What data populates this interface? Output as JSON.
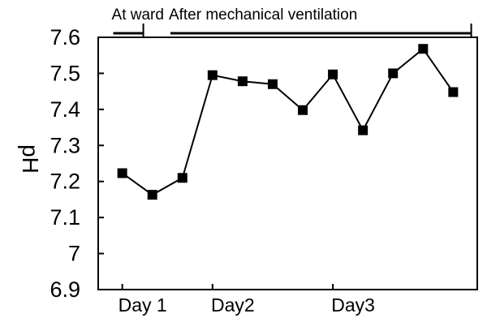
{
  "chart_data": {
    "type": "line",
    "title": "",
    "xlabel": "",
    "ylabel": "pH",
    "ylim": [
      6.9,
      7.6
    ],
    "yticks": [
      "7.6",
      "7.5",
      "7.4",
      "7.3",
      "7.2",
      "7.1",
      "7",
      "6.9"
    ],
    "x_tick_labels": [
      "Day 1",
      "Day2",
      "Day3"
    ],
    "x_tick_positions": [
      1,
      4,
      8
    ],
    "series": [
      {
        "x": [
          1,
          2,
          3,
          4,
          5,
          6,
          7,
          8,
          9,
          10,
          11,
          12
        ],
        "values": [
          7.223,
          7.163,
          7.21,
          7.495,
          7.478,
          7.47,
          7.398,
          7.497,
          7.342,
          7.5,
          7.568,
          7.448
        ]
      }
    ],
    "annotations": [
      {
        "text": "At ward",
        "x_start": 0.7,
        "x_end": 1.7
      },
      {
        "text": "After mechanical ventilation",
        "x_start": 2.6,
        "x_end": 12.6
      }
    ],
    "grid": false,
    "marker": "square",
    "color": "#000000"
  }
}
